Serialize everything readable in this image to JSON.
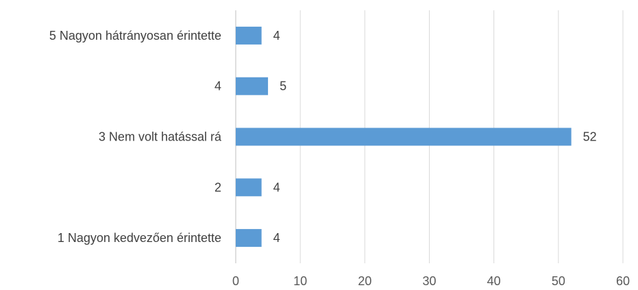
{
  "chart_data": {
    "type": "bar",
    "orientation": "horizontal",
    "categories": [
      "5 Nagyon hátrányosan érintette",
      "4",
      "3 Nem volt hatással rá",
      "2",
      "1 Nagyon kedvezően érintette"
    ],
    "values": [
      4,
      5,
      52,
      4,
      4
    ],
    "data_labels": [
      "4",
      "5",
      "52",
      "4",
      "4"
    ],
    "xlim": [
      0,
      60
    ],
    "x_ticks": [
      "0",
      "10",
      "20",
      "30",
      "40",
      "50",
      "60"
    ],
    "grid": "vertical",
    "bar_color": "#5b9bd5"
  }
}
